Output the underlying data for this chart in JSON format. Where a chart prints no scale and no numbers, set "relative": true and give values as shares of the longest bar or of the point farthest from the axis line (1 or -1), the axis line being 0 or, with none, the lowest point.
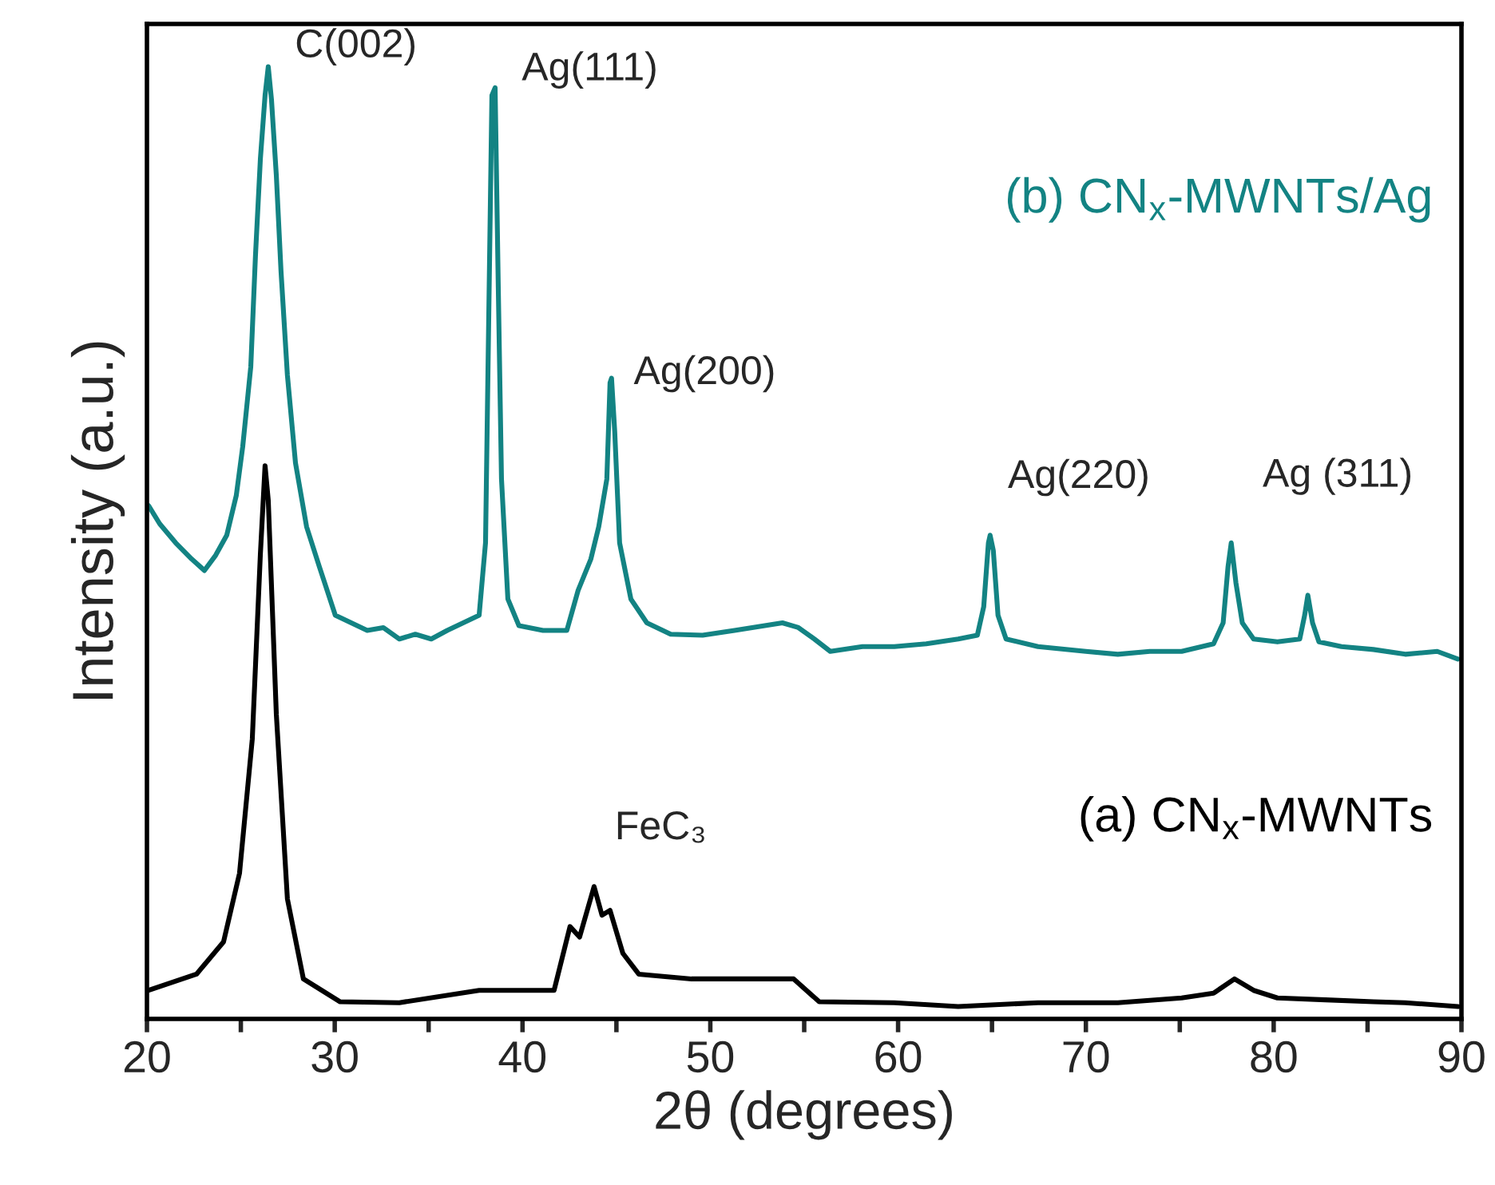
{
  "chart_data": {
    "type": "line",
    "relative": true,
    "xlabel": "2θ (degrees)",
    "ylabel": "Intensity (a.u.)",
    "xlim": [
      20,
      90
    ],
    "xticks": [
      20,
      {
        "value": 25,
        "label": null
      },
      30,
      {
        "value": 35,
        "label": null
      },
      40,
      {
        "value": 45,
        "label": null
      },
      50,
      {
        "value": 55,
        "label": null
      },
      60,
      {
        "value": 65,
        "label": null
      },
      70,
      {
        "value": 75,
        "label": null
      },
      80,
      {
        "value": 85,
        "label": null
      },
      90
    ],
    "grid": false,
    "legend": false,
    "marker": "none",
    "line_style": "solid",
    "series": [
      {
        "name": "(a) CN$_{x}$-MWNTs",
        "color": "#000000",
        "x": [
          20.09,
          22.64,
          24.08,
          24.93,
          25.61,
          26.04,
          26.29,
          26.46,
          26.89,
          27.48,
          28.33,
          30.29,
          33.44,
          37.69,
          41.68,
          42.53,
          43.04,
          43.81,
          44.23,
          44.66,
          45.34,
          46.19,
          49.0,
          51.04,
          54.44,
          55.8,
          59.8,
          63.2,
          67.45,
          71.7,
          75.1,
          76.8,
          77.91,
          78.93,
          80.2,
          82.76,
          85.31,
          87.01,
          89.81
        ],
        "values": [
          0.03,
          0.047,
          0.081,
          0.153,
          0.294,
          0.488,
          0.581,
          0.545,
          0.32,
          0.126,
          0.042,
          0.018,
          0.017,
          0.03,
          0.03,
          0.097,
          0.086,
          0.139,
          0.109,
          0.114,
          0.069,
          0.047,
          0.042,
          0.042,
          0.042,
          0.018,
          0.017,
          0.013,
          0.017,
          0.017,
          0.022,
          0.027,
          0.042,
          0.03,
          0.022,
          0.02,
          0.018,
          0.017,
          0.013
        ]
      },
      {
        "name": "(b) CN$_{x}$-MWNTs/Ag",
        "color": "#138383",
        "x": [
          20.09,
          20.68,
          21.53,
          22.38,
          23.06,
          23.66,
          24.25,
          24.76,
          25.1,
          25.53,
          25.78,
          26.04,
          26.29,
          26.46,
          26.63,
          26.89,
          27.14,
          27.48,
          27.91,
          28.5,
          29.18,
          30.03,
          30.88,
          31.73,
          32.59,
          33.44,
          34.29,
          35.14,
          35.99,
          36.84,
          37.69,
          38.03,
          38.2,
          38.37,
          38.54,
          38.71,
          38.88,
          39.22,
          39.81,
          41.09,
          42.36,
          42.96,
          43.64,
          44.06,
          44.49,
          44.66,
          44.74,
          44.91,
          45.17,
          45.77,
          46.62,
          47.89,
          49.59,
          51.29,
          53.84,
          54.69,
          55.54,
          56.39,
          58.1,
          59.8,
          61.5,
          63.2,
          64.22,
          64.56,
          64.81,
          64.9,
          65.07,
          65.32,
          65.75,
          67.45,
          70.0,
          71.7,
          73.4,
          75.1,
          76.8,
          77.31,
          77.57,
          77.74,
          77.99,
          78.33,
          78.93,
          80.2,
          81.39,
          81.65,
          81.82,
          82.07,
          82.41,
          83.61,
          85.31,
          87.01,
          88.71,
          89.81
        ],
        "values": [
          0.539,
          0.52,
          0.5,
          0.483,
          0.471,
          0.487,
          0.508,
          0.55,
          0.601,
          0.685,
          0.802,
          0.903,
          0.97,
          1.0,
          0.966,
          0.886,
          0.785,
          0.676,
          0.584,
          0.517,
          0.475,
          0.424,
          0.416,
          0.408,
          0.411,
          0.399,
          0.404,
          0.399,
          0.408,
          0.416,
          0.424,
          0.5,
          0.735,
          0.97,
          0.978,
          0.768,
          0.567,
          0.441,
          0.413,
          0.408,
          0.408,
          0.45,
          0.483,
          0.517,
          0.567,
          0.668,
          0.673,
          0.617,
          0.5,
          0.441,
          0.416,
          0.404,
          0.403,
          0.408,
          0.416,
          0.411,
          0.399,
          0.386,
          0.391,
          0.391,
          0.394,
          0.399,
          0.403,
          0.433,
          0.5,
          0.508,
          0.492,
          0.424,
          0.399,
          0.391,
          0.386,
          0.383,
          0.386,
          0.386,
          0.394,
          0.416,
          0.475,
          0.5,
          0.458,
          0.416,
          0.399,
          0.396,
          0.399,
          0.424,
          0.445,
          0.416,
          0.396,
          0.391,
          0.388,
          0.383,
          0.386,
          0.378
        ]
      }
    ],
    "annotations": [
      {
        "text": "C(002)",
        "x": 26.46,
        "y": 1.0
      },
      {
        "text": "Ag(111)",
        "x": 38.54,
        "y": 0.978
      },
      {
        "text": "Ag(200)",
        "x": 44.74,
        "y": 0.673
      },
      {
        "text": "Ag(220)",
        "x": 64.9,
        "y": 0.508
      },
      {
        "text": "Ag (311)",
        "x": 77.74,
        "y": 0.5
      },
      {
        "text": "FeC₃",
        "x": 43.81,
        "y": 0.139
      }
    ]
  }
}
